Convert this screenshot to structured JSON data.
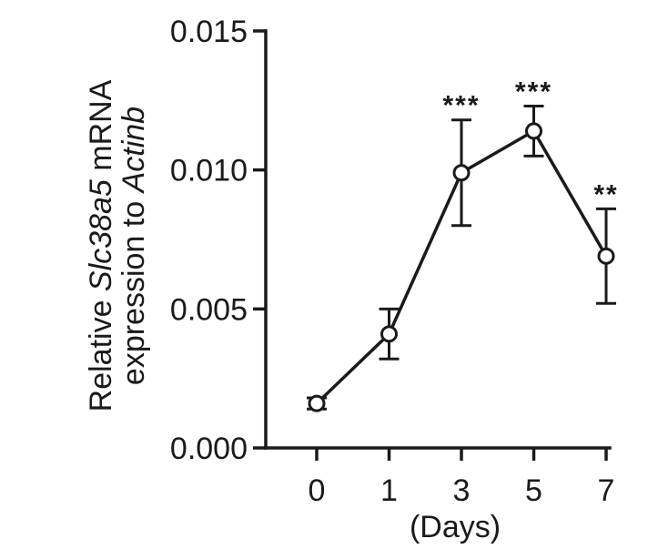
{
  "chart_data": {
    "type": "line",
    "ylabel_line1": [
      "Relative ",
      "Slc38a5",
      " mRNA"
    ],
    "ylabel_line2": [
      "expression to ",
      "Actinb"
    ],
    "xlabel": "(Days)",
    "categories": [
      "0",
      "1",
      "3",
      "5",
      "7"
    ],
    "y_ticks": [
      "0.000",
      "0.005",
      "0.010",
      "0.015"
    ],
    "ylim": [
      0,
      0.015
    ],
    "series": [
      {
        "values": [
          0.0016,
          0.0041,
          0.0099,
          0.0114,
          0.0069
        ],
        "error": [
          0.0002,
          0.0009,
          0.0019,
          0.0009,
          0.0017
        ],
        "significance": [
          "",
          "",
          "***",
          "***",
          "**"
        ]
      }
    ],
    "grid": false,
    "legend": "none"
  },
  "colors": {
    "ink": "#1a1a1a",
    "background": "#ffffff"
  }
}
